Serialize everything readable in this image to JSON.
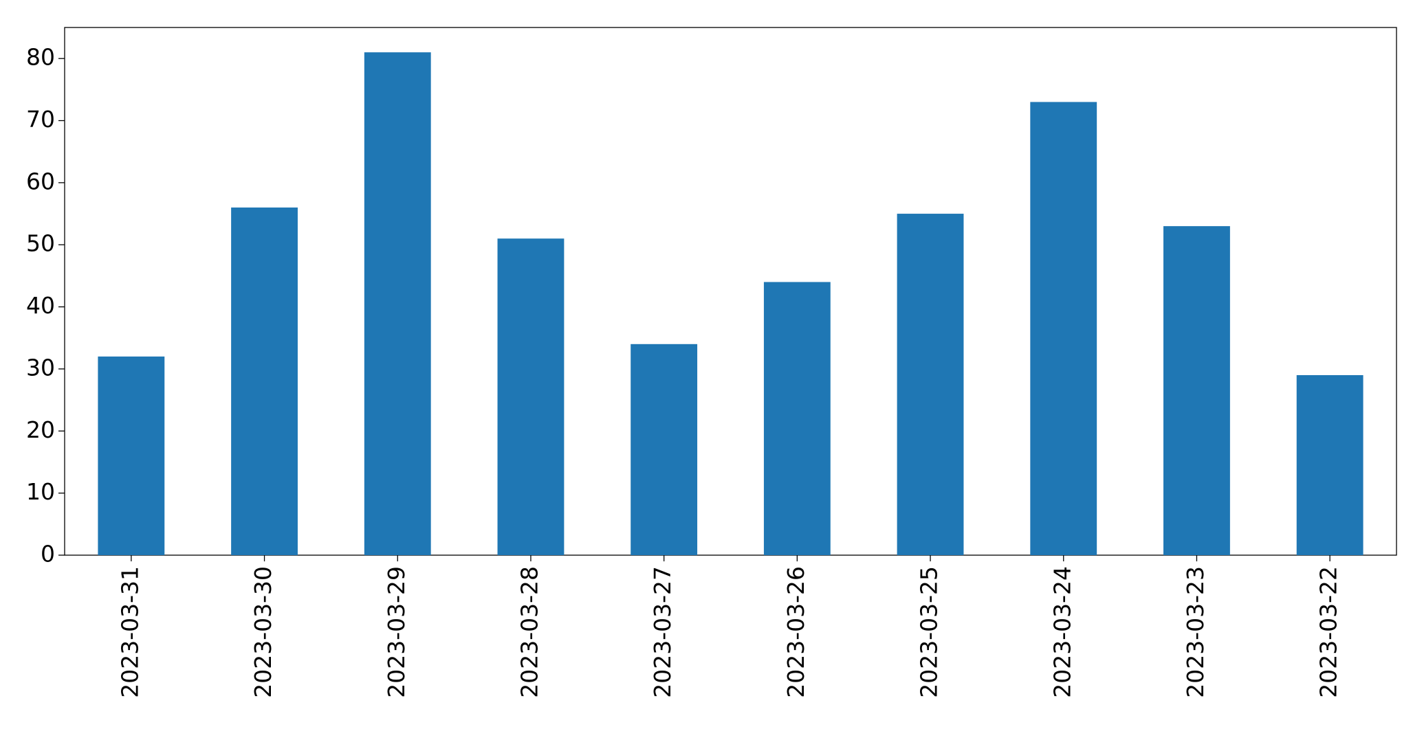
{
  "chart_data": {
    "type": "bar",
    "categories": [
      "2023-03-31",
      "2023-03-30",
      "2023-03-29",
      "2023-03-28",
      "2023-03-27",
      "2023-03-26",
      "2023-03-25",
      "2023-03-24",
      "2023-03-23",
      "2023-03-22"
    ],
    "values": [
      32,
      56,
      81,
      51,
      34,
      44,
      55,
      73,
      53,
      29
    ],
    "color": "#1f77b4",
    "ylim": [
      0,
      85
    ],
    "yticks": [
      0,
      10,
      20,
      30,
      40,
      50,
      60,
      70,
      80
    ],
    "grid": false
  }
}
